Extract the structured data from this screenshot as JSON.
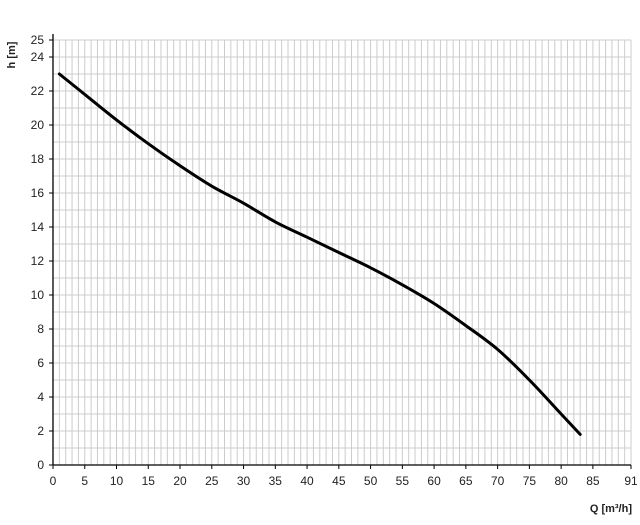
{
  "chart_data": {
    "type": "line",
    "title": "",
    "xlabel": "Q [m³/h]",
    "ylabel": "h [m]",
    "xlim": [
      0,
      91
    ],
    "ylim": [
      0,
      25
    ],
    "xticks": [
      0,
      5,
      10,
      15,
      20,
      25,
      30,
      35,
      40,
      45,
      50,
      55,
      60,
      65,
      70,
      75,
      80,
      85,
      91
    ],
    "yticks": [
      0,
      2,
      4,
      6,
      8,
      10,
      12,
      14,
      16,
      18,
      20,
      22,
      24,
      25
    ],
    "grid": true,
    "grid_minor_step": 1,
    "colors": {
      "line": "#000000",
      "grid": "#cccccc",
      "axis": "#000000"
    },
    "series": [
      {
        "x": [
          1,
          5,
          10,
          15,
          20,
          25,
          30,
          35,
          40,
          45,
          50,
          55,
          60,
          65,
          70,
          75,
          80,
          83
        ],
        "y": [
          23.0,
          21.8,
          20.3,
          18.9,
          17.6,
          16.4,
          15.4,
          14.3,
          13.4,
          12.5,
          11.6,
          10.6,
          9.5,
          8.2,
          6.8,
          5.0,
          3.0,
          1.8
        ]
      }
    ]
  }
}
